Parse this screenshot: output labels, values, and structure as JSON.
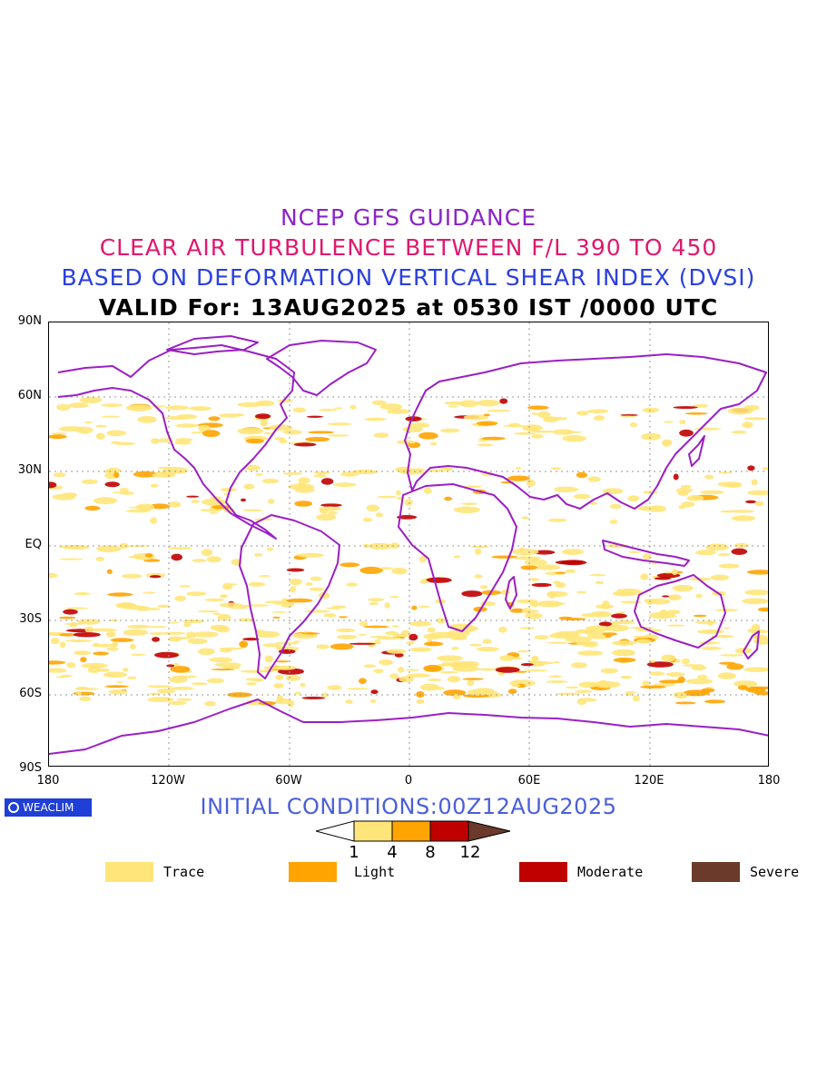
{
  "titles": {
    "line1": "NCEP GFS GUIDANCE",
    "line2": "CLEAR AIR TURBULENCE BETWEEN F/L 390 TO 450",
    "line3": "BASED ON DEFORMATION VERTICAL SHEAR INDEX (DVSI)",
    "line4": "VALID For: 13AUG2025 at 0530 IST /0000 UTC"
  },
  "colors": {
    "line1": "#8b24c9",
    "line2": "#e0186e",
    "line3": "#2a3fe0",
    "line4": "#000000",
    "coast": "#9b1fc4",
    "trace": "#ffe57a",
    "light": "#ffa400",
    "moderate": "#c00000",
    "severe": "#6b3a2a",
    "init": "#4a5fd8",
    "badge": "#1f3fd6"
  },
  "axes": {
    "lat_labels": [
      "90N",
      "60N",
      "30N",
      "EQ",
      "30S",
      "60S",
      "90S"
    ],
    "lon_labels": [
      "180",
      "120W",
      "60W",
      "0",
      "60E",
      "120E",
      "180"
    ]
  },
  "badge_text": "WEACLIM",
  "initial_conditions": "INITIAL CONDITIONS:00Z12AUG2025",
  "scale": {
    "ticks": [
      "1",
      "4",
      "8",
      "12"
    ]
  },
  "legend": [
    {
      "label": "Trace",
      "color": "#ffe57a"
    },
    {
      "label": "Light",
      "color": "#ffa400"
    },
    {
      "label": "Moderate",
      "color": "#c00000"
    },
    {
      "label": "Severe",
      "color": "#6b3a2a"
    }
  ]
}
